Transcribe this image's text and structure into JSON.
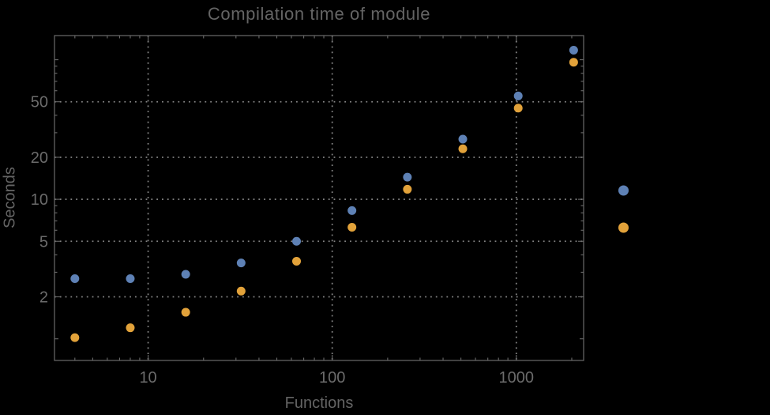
{
  "colors": {
    "background": "#000000",
    "text": "#6B6B6B",
    "frame": "#6A6A6A",
    "grid": "#828282",
    "series_blue": "#5E81B5",
    "series_orange": "#E2A23A"
  },
  "chart_data": {
    "type": "scatter",
    "title": "Compilation time of module",
    "xlabel": "Functions",
    "ylabel": "Seconds",
    "x_scale": "log",
    "y_scale": "log",
    "xlim": [
      3.1,
      2320
    ],
    "ylim": [
      0.7,
      149
    ],
    "grid": "dotted lines at labeled major ticks",
    "legend_position": "right-outside, markers only (no visible labels)",
    "x_ticks": [
      {
        "value": 10,
        "label": "10"
      },
      {
        "value": 100,
        "label": "100"
      },
      {
        "value": 1000,
        "label": "1000"
      }
    ],
    "y_ticks": [
      {
        "value": 2,
        "label": "2"
      },
      {
        "value": 5,
        "label": "5"
      },
      {
        "value": 10,
        "label": "10"
      },
      {
        "value": 20,
        "label": "20"
      },
      {
        "value": 50,
        "label": "50"
      }
    ],
    "x": [
      4,
      8,
      16,
      32,
      64,
      128,
      256,
      512,
      1024,
      2048
    ],
    "series": [
      {
        "name": "series-1-blue",
        "color": "#5E81B5",
        "values": [
          2.7,
          2.7,
          2.9,
          3.5,
          5.0,
          8.3,
          14.4,
          27,
          55,
          117
        ]
      },
      {
        "name": "series-2-orange",
        "color": "#E2A23A",
        "values": [
          1.02,
          1.2,
          1.55,
          2.2,
          3.6,
          6.3,
          11.8,
          23,
          45,
          96
        ]
      }
    ],
    "legend_markers": [
      {
        "color": "#5E81B5",
        "label": ""
      },
      {
        "color": "#E2A23A",
        "label": ""
      }
    ]
  }
}
